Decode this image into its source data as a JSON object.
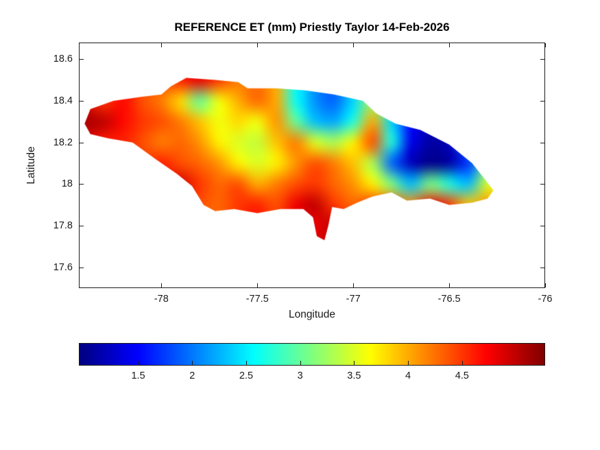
{
  "chart_data": {
    "type": "heatmap",
    "title": "REFERENCE ET (mm) Priestly Taylor 14-Feb-2026",
    "xlabel": "Longitude",
    "ylabel": "Latitude",
    "xlim": [
      -78.43,
      -76.0
    ],
    "ylim": [
      17.5,
      18.68
    ],
    "xticks": [
      -78,
      -77.5,
      -77,
      -76.5,
      -76
    ],
    "yticks": [
      17.6,
      17.8,
      18,
      18.2,
      18.4,
      18.6
    ],
    "grid_on": false,
    "colormap": "jet",
    "clim": [
      0.95,
      5.27
    ],
    "colorbar_position": "bottom",
    "colorbar_ticks": [
      1.5,
      2,
      2.5,
      3,
      3.5,
      4,
      4.5
    ],
    "units": "mm",
    "region": "Jamaica",
    "grid": {
      "lon_start": -78.4,
      "lon_step": 0.1,
      "lat_start": 18.5,
      "lat_step": -0.1,
      "values": [
        [
          null,
          null,
          null,
          null,
          4.4,
          4.6,
          4.8,
          4.5,
          4.2,
          null,
          null,
          null,
          null,
          null,
          null,
          null,
          null,
          null,
          null,
          null,
          null,
          null
        ],
        [
          null,
          4.5,
          4.7,
          4.4,
          4.2,
          3.8,
          3.0,
          3.6,
          4.0,
          4.3,
          4.0,
          2.6,
          2.1,
          1.9,
          2.4,
          3.2,
          null,
          null,
          null,
          null,
          null,
          null
        ],
        [
          5.1,
          5.0,
          4.7,
          4.5,
          4.4,
          4.2,
          3.9,
          3.6,
          3.8,
          3.6,
          4.1,
          3.0,
          2.3,
          2.2,
          2.7,
          4.0,
          2.4,
          1.5,
          1.2,
          null,
          null,
          null
        ],
        [
          null,
          4.6,
          4.6,
          4.4,
          4.2,
          4.3,
          4.1,
          3.7,
          3.5,
          3.4,
          3.9,
          4.2,
          3.5,
          3.3,
          3.7,
          4.4,
          2.7,
          1.4,
          1.1,
          1.2,
          2.1,
          null
        ],
        [
          null,
          null,
          null,
          4.5,
          4.6,
          4.4,
          4.3,
          4.1,
          3.7,
          3.5,
          3.7,
          4.1,
          4.4,
          4.2,
          3.9,
          3.3,
          1.9,
          1.2,
          1.0,
          1.1,
          1.7,
          2.9
        ],
        [
          null,
          null,
          null,
          null,
          4.7,
          4.9,
          4.5,
          4.3,
          4.4,
          4.0,
          4.2,
          4.4,
          4.5,
          4.3,
          4.1,
          3.7,
          3.1,
          2.3,
          3.1,
          2.7,
          2.3,
          3.5
        ],
        [
          null,
          null,
          null,
          null,
          null,
          null,
          4.4,
          4.3,
          4.5,
          4.6,
          4.4,
          4.8,
          5.0,
          4.5,
          4.3,
          4.5,
          4.4,
          4.1,
          4.8,
          4.5,
          3.9,
          4.1
        ],
        [
          null,
          null,
          null,
          null,
          null,
          null,
          null,
          null,
          null,
          null,
          null,
          null,
          4.8,
          5.0,
          null,
          null,
          null,
          null,
          null,
          null,
          null,
          null
        ],
        [
          null,
          null,
          null,
          null,
          null,
          null,
          null,
          null,
          null,
          null,
          null,
          null,
          4.9,
          5.0,
          null,
          null,
          null,
          null,
          null,
          null,
          null,
          null
        ]
      ]
    },
    "outline_lonlat": [
      [
        -78.4,
        18.29
      ],
      [
        -78.37,
        18.36
      ],
      [
        -78.25,
        18.4
      ],
      [
        -78.1,
        18.42
      ],
      [
        -78.0,
        18.43
      ],
      [
        -77.95,
        18.47
      ],
      [
        -77.87,
        18.51
      ],
      [
        -77.72,
        18.5
      ],
      [
        -77.6,
        18.49
      ],
      [
        -77.55,
        18.46
      ],
      [
        -77.4,
        18.46
      ],
      [
        -77.25,
        18.45
      ],
      [
        -77.1,
        18.43
      ],
      [
        -76.95,
        18.4
      ],
      [
        -76.88,
        18.34
      ],
      [
        -76.78,
        18.29
      ],
      [
        -76.65,
        18.26
      ],
      [
        -76.5,
        18.19
      ],
      [
        -76.38,
        18.1
      ],
      [
        -76.32,
        18.03
      ],
      [
        -76.27,
        17.97
      ],
      [
        -76.3,
        17.93
      ],
      [
        -76.38,
        17.91
      ],
      [
        -76.5,
        17.9
      ],
      [
        -76.6,
        17.93
      ],
      [
        -76.72,
        17.92
      ],
      [
        -76.8,
        17.96
      ],
      [
        -76.9,
        17.94
      ],
      [
        -76.98,
        17.91
      ],
      [
        -77.05,
        17.88
      ],
      [
        -77.11,
        17.89
      ],
      [
        -77.13,
        17.8
      ],
      [
        -77.15,
        17.73
      ],
      [
        -77.19,
        17.75
      ],
      [
        -77.21,
        17.84
      ],
      [
        -77.26,
        17.88
      ],
      [
        -77.38,
        17.88
      ],
      [
        -77.5,
        17.86
      ],
      [
        -77.62,
        17.88
      ],
      [
        -77.72,
        17.87
      ],
      [
        -77.78,
        17.9
      ],
      [
        -77.84,
        17.99
      ],
      [
        -77.92,
        18.05
      ],
      [
        -78.03,
        18.12
      ],
      [
        -78.15,
        18.2
      ],
      [
        -78.28,
        18.22
      ],
      [
        -78.37,
        18.24
      ]
    ]
  }
}
